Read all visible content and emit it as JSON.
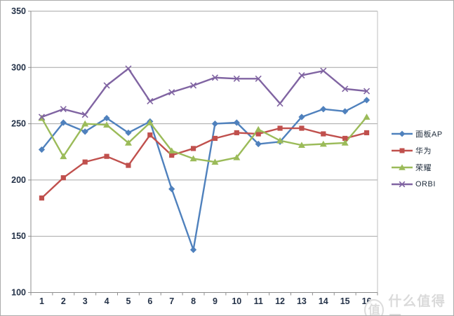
{
  "chart_data": {
    "type": "line",
    "title": "",
    "xlabel": "",
    "ylabel": "",
    "grid": true,
    "legend_position": "right",
    "categories": [
      "1",
      "2",
      "3",
      "4",
      "5",
      "6",
      "7",
      "8",
      "9",
      "10",
      "11",
      "12",
      "13",
      "14",
      "15",
      "16"
    ],
    "y_axis": {
      "min": 100,
      "max": 350,
      "step": 50,
      "tick_labels": [
        "100",
        "150",
        "200",
        "250",
        "300",
        "350"
      ]
    },
    "series": [
      {
        "id": "panel-ap",
        "name": "面板AP",
        "color": "#4F81BD",
        "marker": "diamond",
        "values": [
          227,
          251,
          243,
          255,
          242,
          252,
          192,
          138,
          250,
          251,
          232,
          234,
          256,
          263,
          261,
          271
        ]
      },
      {
        "id": "huawei",
        "name": "华为",
        "color": "#C0504D",
        "marker": "square",
        "values": [
          184,
          202,
          216,
          221,
          213,
          240,
          222,
          228,
          237,
          242,
          241,
          246,
          246,
          241,
          237,
          242
        ]
      },
      {
        "id": "honor",
        "name": "荣耀",
        "color": "#9BBB59",
        "marker": "triangle",
        "values": [
          255,
          221,
          250,
          249,
          233,
          251,
          226,
          219,
          216,
          220,
          245,
          235,
          231,
          232,
          233,
          256
        ]
      },
      {
        "id": "orbi",
        "name": "ORBI",
        "color": "#8064A2",
        "marker": "x",
        "values": [
          256,
          263,
          258,
          284,
          299,
          270,
          278,
          284,
          291,
          290,
          290,
          268,
          293,
          297,
          281,
          279
        ]
      }
    ]
  },
  "styles": {
    "gridline_color": "#a6a6a6",
    "axis_color": "#8c8c8c",
    "label_color": "#253349",
    "plot_border_color": "#bfbfbf"
  },
  "watermark": {
    "logo_char": "值",
    "text": "什么值得买"
  }
}
